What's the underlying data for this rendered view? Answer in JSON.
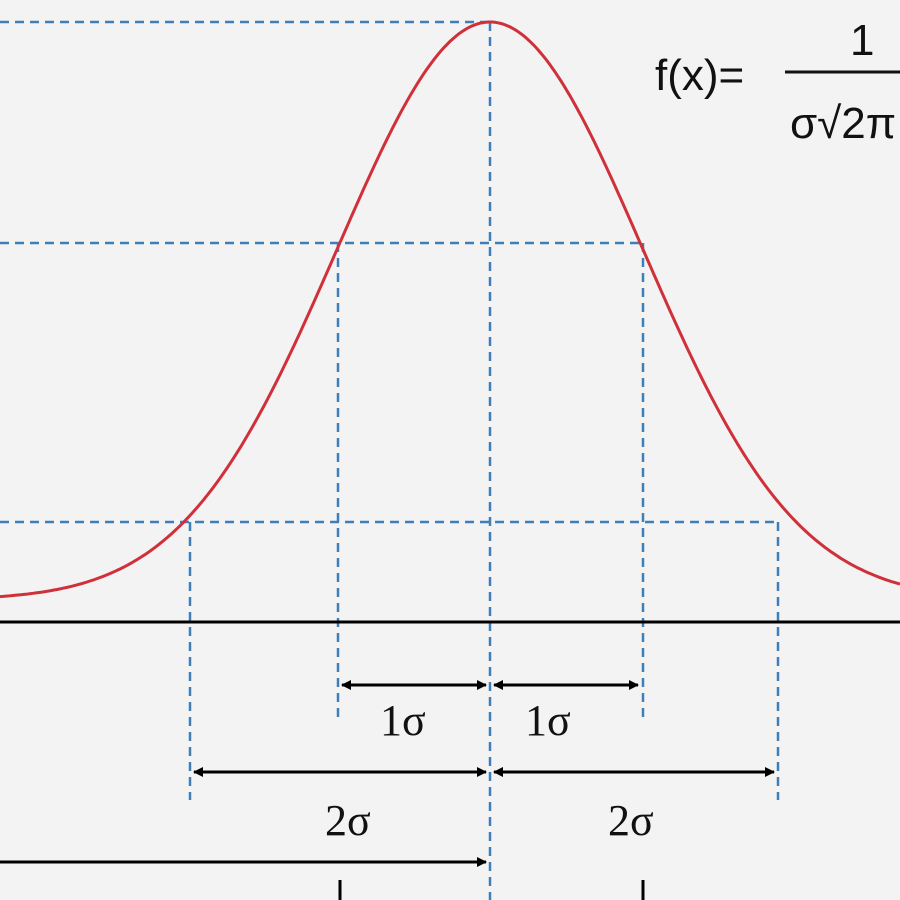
{
  "formula": {
    "lhs": "f(x)=",
    "numerator": "1",
    "denominator": "σ√2π"
  },
  "labels": {
    "one_sigma_left": "1σ",
    "one_sigma_right": "1σ",
    "two_sigma_left": "2σ",
    "two_sigma_right": "2σ"
  },
  "colors": {
    "curve": "#d0303a",
    "guides": "#3f7fb8",
    "axis": "#000000"
  }
}
